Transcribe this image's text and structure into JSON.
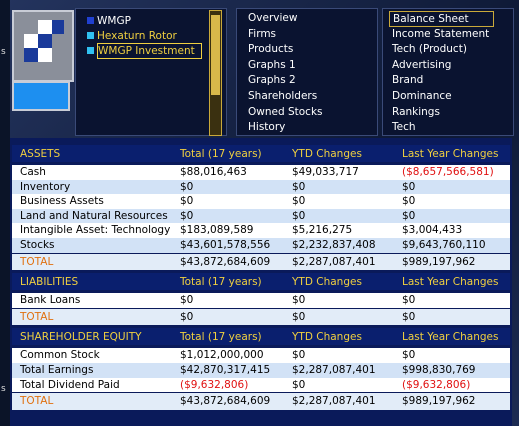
{
  "side_labels": [
    "s",
    "s"
  ],
  "companies": [
    "WMGP",
    "Hexaturn Rotor",
    "WMGP Investment"
  ],
  "menu_reports": [
    "Overview",
    "Firms",
    "Products",
    "Graphs 1",
    "Graphs 2",
    "Shareholders",
    "Owned Stocks",
    "History"
  ],
  "menu_sheets": [
    "Balance Sheet",
    "Income Statement",
    "Tech (Product)",
    "Advertising",
    "Brand",
    "Dominance",
    "Rankings",
    "Tech"
  ],
  "sections": [
    {
      "header": [
        "ASSETS",
        "Total (17 years)",
        "YTD Changes",
        "Last Year Changes"
      ],
      "rows": [
        [
          "Cash",
          "$88,016,463",
          "$49,033,717",
          "($8,657,566,581)"
        ],
        [
          "Inventory",
          "$0",
          "$0",
          "$0"
        ],
        [
          "Business Assets",
          "$0",
          "$0",
          "$0"
        ],
        [
          "Land and Natural Resources",
          "$0",
          "$0",
          "$0"
        ],
        [
          "Intangible Asset: Technology",
          "$183,089,589",
          "$5,216,275",
          "$3,004,433"
        ],
        [
          "Stocks",
          "$43,601,578,556",
          "$2,232,837,408",
          "$9,643,760,110"
        ]
      ],
      "total": [
        "TOTAL",
        "$43,872,684,609",
        "$2,287,087,401",
        "$989,197,962"
      ]
    },
    {
      "header": [
        "LIABILITIES",
        "Total (17 years)",
        "YTD Changes",
        "Last Year Changes"
      ],
      "rows": [
        [
          "Bank Loans",
          "$0",
          "$0",
          "$0"
        ]
      ],
      "total": [
        "TOTAL",
        "$0",
        "$0",
        "$0"
      ]
    },
    {
      "header": [
        "SHAREHOLDER EQUITY",
        "Total (17 years)",
        "YTD Changes",
        "Last Year Changes"
      ],
      "rows": [
        [
          "Common Stock",
          "$1,012,000,000",
          "$0",
          "$0"
        ],
        [
          "Total Earnings",
          "$42,870,317,415",
          "$2,287,087,401",
          "$998,830,769"
        ],
        [
          "Total Dividend Paid",
          "($9,632,806)",
          "$0",
          "($9,632,806)"
        ]
      ],
      "total": [
        "TOTAL",
        "$43,872,684,609",
        "$2,287,087,401",
        "$989,197,962"
      ]
    }
  ]
}
